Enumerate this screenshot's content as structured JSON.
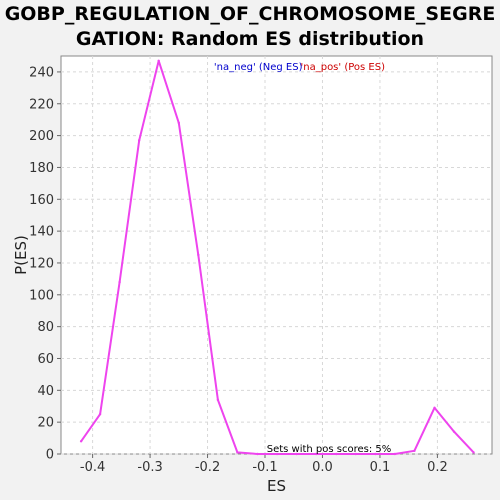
{
  "chart_data": {
    "type": "line",
    "title_lines": [
      "GOBP_REGULATION_OF_CHROMOSOME_SEGRE",
      "GATION: Random ES distribution"
    ],
    "xlabel": "ES",
    "ylabel": "P(ES)",
    "xlim": [
      -0.455,
      0.295
    ],
    "ylim": [
      0,
      250
    ],
    "xticks": [
      -0.4,
      -0.3,
      -0.2,
      -0.1,
      0.0,
      0.1,
      0.2
    ],
    "xtick_labels": [
      "-0.4",
      "-0.3",
      "-0.2",
      "-0.1",
      "0.0",
      "0.1",
      "0.2"
    ],
    "yticks": [
      0,
      20,
      40,
      60,
      80,
      100,
      120,
      140,
      160,
      180,
      200,
      220,
      240
    ],
    "yticklabels": [
      "0",
      "20",
      "40",
      "60",
      "80",
      "100",
      "120",
      "140",
      "160",
      "180",
      "200",
      "220",
      "240"
    ],
    "grid": true,
    "legend": {
      "placement": "top-center",
      "neg_label": "'na_neg' (Neg ES)",
      "pos_label": "'na_pos' (Pos ES)",
      "neg_color": "#0000cc",
      "pos_color": "#cc0000"
    },
    "annotation": "Sets with pos scores: 5%",
    "series": [
      {
        "color": "#ee44ee",
        "x": [
          -0.42,
          -0.387,
          -0.353,
          -0.319,
          -0.285,
          -0.25,
          -0.216,
          -0.182,
          -0.148,
          -0.113,
          -0.079,
          -0.045,
          -0.011,
          0.024,
          0.058,
          0.092,
          0.126,
          0.16,
          0.195,
          0.229,
          0.263
        ],
        "y": [
          8,
          25,
          108,
          197,
          247,
          208,
          125,
          34,
          1,
          0,
          0,
          0,
          0,
          0,
          0,
          0,
          0,
          2,
          29,
          14,
          1
        ]
      }
    ]
  }
}
